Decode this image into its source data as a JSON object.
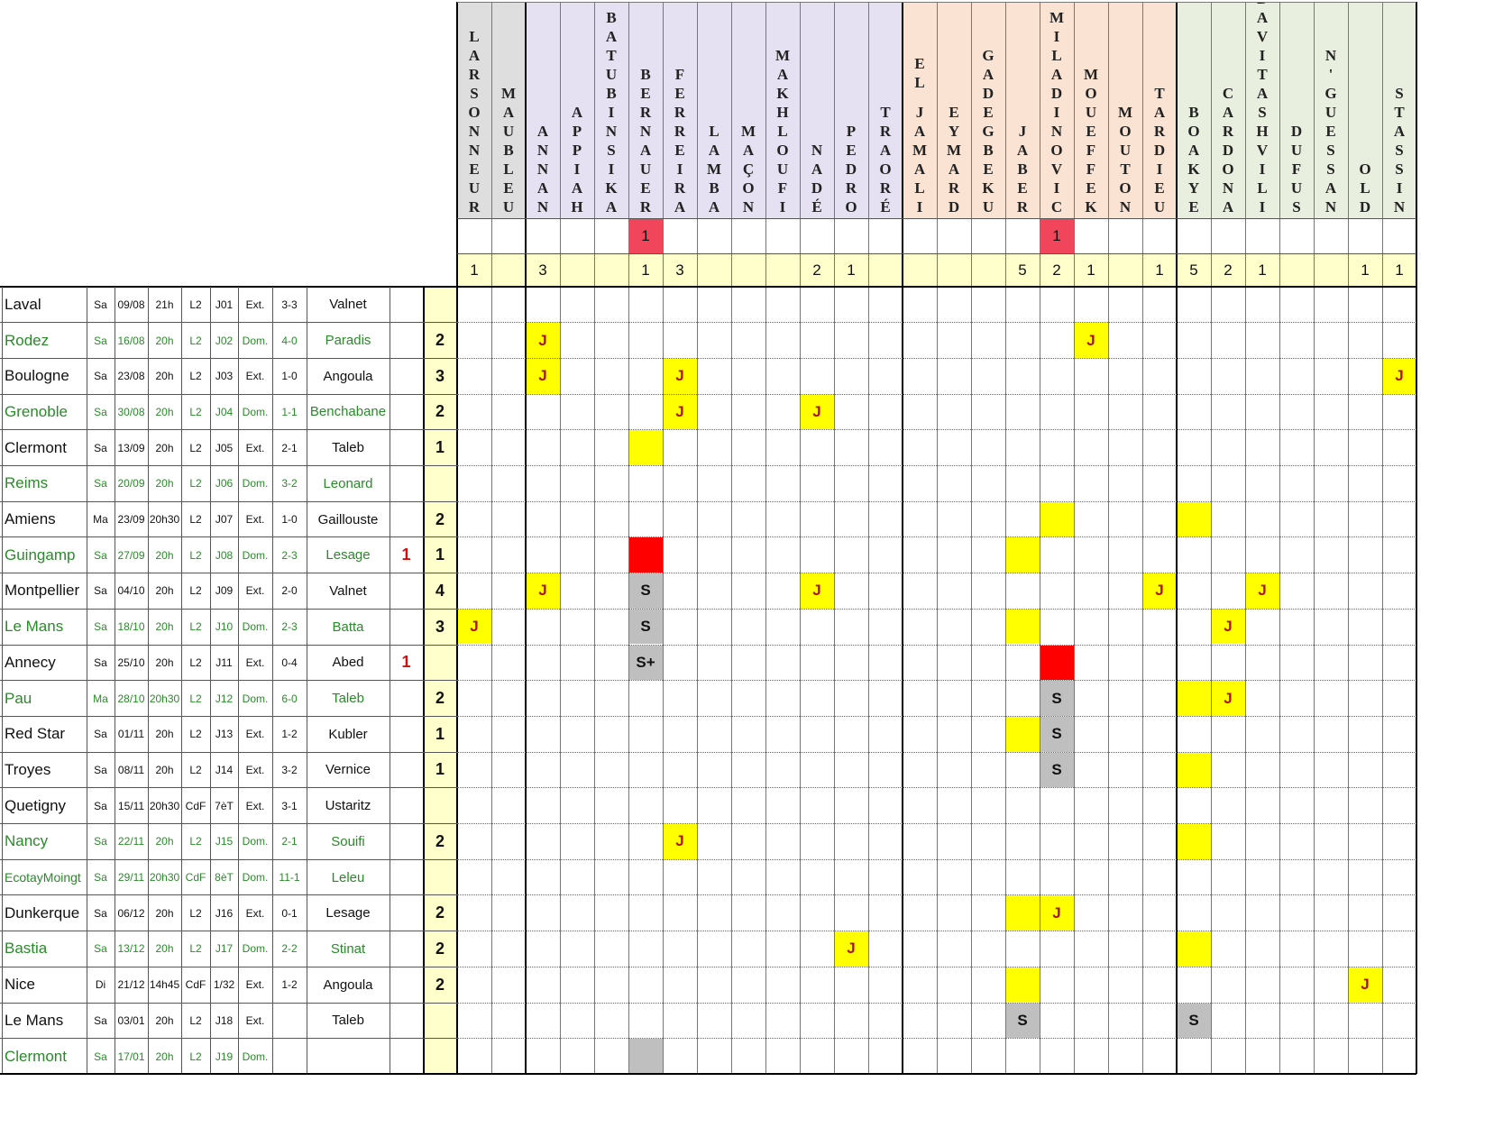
{
  "colors": {
    "header_gk": "#dedede",
    "header_def": "#e5e1f2",
    "header_mid": "#fbe3d4",
    "header_att": "#e9efdf",
    "summary": "#ffffcc",
    "yellow": "#ffff00",
    "red": "#ff0000",
    "red_light": "#f0455a",
    "gray": "#bfbfbf",
    "home_text": "#2a8a2a",
    "red_num": "#d01010"
  },
  "players": [
    {
      "name": "LARSONNEUR",
      "group": "gk",
      "red_count": "",
      "yellow_total": "1"
    },
    {
      "name": "MAUBLEU",
      "group": "gk",
      "red_count": "",
      "yellow_total": ""
    },
    {
      "name": "ANNAN",
      "group": "def",
      "red_count": "",
      "yellow_total": "3"
    },
    {
      "name": "APPIAH",
      "group": "def",
      "red_count": "",
      "yellow_total": ""
    },
    {
      "name": "BATUBINSIKA",
      "group": "def",
      "red_count": "",
      "yellow_total": ""
    },
    {
      "name": "BERNAUER",
      "group": "def",
      "red_count": "1",
      "yellow_total": "1"
    },
    {
      "name": "FERREIRA",
      "group": "def",
      "red_count": "",
      "yellow_total": "3"
    },
    {
      "name": "LAMBA",
      "group": "def",
      "red_count": "",
      "yellow_total": ""
    },
    {
      "name": "MAÇON",
      "group": "def",
      "red_count": "",
      "yellow_total": ""
    },
    {
      "name": "MAKHLOUFI",
      "group": "def",
      "red_count": "",
      "yellow_total": ""
    },
    {
      "name": "NADÉ",
      "group": "def",
      "red_count": "",
      "yellow_total": "2"
    },
    {
      "name": "PEDRO",
      "group": "def",
      "red_count": "",
      "yellow_total": "1"
    },
    {
      "name": "TRAORÉ",
      "group": "def",
      "red_count": "",
      "yellow_total": ""
    },
    {
      "name": "EL JAMALI",
      "group": "mid",
      "red_count": "",
      "yellow_total": ""
    },
    {
      "name": "EYMARD",
      "group": "mid",
      "red_count": "",
      "yellow_total": ""
    },
    {
      "name": "GADEGBEKU",
      "group": "mid",
      "red_count": "",
      "yellow_total": ""
    },
    {
      "name": "JABER",
      "group": "mid",
      "red_count": "",
      "yellow_total": "5"
    },
    {
      "name": "MILADINOVIC",
      "group": "mid",
      "red_count": "1",
      "yellow_total": "2"
    },
    {
      "name": "MOUEFFEK",
      "group": "mid",
      "red_count": "",
      "yellow_total": "1"
    },
    {
      "name": "MOUTON",
      "group": "mid",
      "red_count": "",
      "yellow_total": ""
    },
    {
      "name": "TARDIEU",
      "group": "mid",
      "red_count": "",
      "yellow_total": "1"
    },
    {
      "name": "BOAKYE",
      "group": "att",
      "red_count": "",
      "yellow_total": "5"
    },
    {
      "name": "CARDONA",
      "group": "att",
      "red_count": "",
      "yellow_total": "2"
    },
    {
      "name": "DAVITASHVILI",
      "group": "att",
      "red_count": "",
      "yellow_total": "1"
    },
    {
      "name": "DUFUS",
      "group": "att",
      "red_count": "",
      "yellow_total": ""
    },
    {
      "name": "N'GUESSAN",
      "group": "att",
      "red_count": "",
      "yellow_total": ""
    },
    {
      "name": "OLD",
      "group": "att",
      "red_count": "",
      "yellow_total": "1"
    },
    {
      "name": "STASSIN",
      "group": "att",
      "red_count": "",
      "yellow_total": "1"
    }
  ],
  "matches": [
    {
      "opponent": "Laval",
      "home": false,
      "day": "Sa",
      "date": "09/08",
      "time": "21h",
      "comp": "L2",
      "round": "J01",
      "venue": "Ext.",
      "score": "3-3",
      "referee": "Valnet",
      "reds": "",
      "yellows": "",
      "cells": []
    },
    {
      "opponent": "Rodez",
      "home": true,
      "day": "Sa",
      "date": "16/08",
      "time": "20h",
      "comp": "L2",
      "round": "J02",
      "venue": "Dom.",
      "score": "4-0",
      "referee": "Paradis",
      "reds": "",
      "yellows": "2",
      "cells": [
        [
          2,
          "yellow",
          "J"
        ],
        [
          18,
          "yellow",
          "J"
        ]
      ]
    },
    {
      "opponent": "Boulogne",
      "home": false,
      "day": "Sa",
      "date": "23/08",
      "time": "20h",
      "comp": "L2",
      "round": "J03",
      "venue": "Ext.",
      "score": "1-0",
      "referee": "Angoula",
      "reds": "",
      "yellows": "3",
      "cells": [
        [
          2,
          "yellow",
          "J"
        ],
        [
          6,
          "yellow",
          "J"
        ],
        [
          27,
          "yellow",
          "J"
        ]
      ]
    },
    {
      "opponent": "Grenoble",
      "home": true,
      "day": "Sa",
      "date": "30/08",
      "time": "20h",
      "comp": "L2",
      "round": "J04",
      "venue": "Dom.",
      "score": "1-1",
      "referee": "Benchabane",
      "reds": "",
      "yellows": "2",
      "cells": [
        [
          6,
          "yellow",
          "J"
        ],
        [
          10,
          "yellow",
          "J"
        ]
      ]
    },
    {
      "opponent": "Clermont",
      "home": false,
      "day": "Sa",
      "date": "13/09",
      "time": "20h",
      "comp": "L2",
      "round": "J05",
      "venue": "Ext.",
      "score": "2-1",
      "referee": "Taleb",
      "reds": "",
      "yellows": "1",
      "cells": [
        [
          5,
          "yellow",
          ""
        ]
      ]
    },
    {
      "opponent": "Reims",
      "home": true,
      "day": "Sa",
      "date": "20/09",
      "time": "20h",
      "comp": "L2",
      "round": "J06",
      "venue": "Dom.",
      "score": "3-2",
      "referee": "Leonard",
      "reds": "",
      "yellows": "",
      "cells": []
    },
    {
      "opponent": "Amiens",
      "home": false,
      "day": "Ma",
      "date": "23/09",
      "time": "20h30",
      "comp": "L2",
      "round": "J07",
      "venue": "Ext.",
      "score": "1-0",
      "referee": "Gaillouste",
      "reds": "",
      "yellows": "2",
      "cells": [
        [
          17,
          "yellow",
          ""
        ],
        [
          21,
          "yellow",
          ""
        ]
      ]
    },
    {
      "opponent": "Guingamp",
      "home": true,
      "day": "Sa",
      "date": "27/09",
      "time": "20h",
      "comp": "L2",
      "round": "J08",
      "venue": "Dom.",
      "score": "2-3",
      "referee": "Lesage",
      "reds": "1",
      "yellows": "1",
      "cells": [
        [
          5,
          "red",
          ""
        ],
        [
          16,
          "yellow",
          ""
        ]
      ]
    },
    {
      "opponent": "Montpellier",
      "home": false,
      "day": "Sa",
      "date": "04/10",
      "time": "20h",
      "comp": "L2",
      "round": "J09",
      "venue": "Ext.",
      "score": "2-0",
      "referee": "Valnet",
      "reds": "",
      "yellows": "4",
      "cells": [
        [
          2,
          "yellow",
          "J"
        ],
        [
          5,
          "gray",
          "S"
        ],
        [
          10,
          "yellow",
          "J"
        ],
        [
          20,
          "yellow",
          "J"
        ],
        [
          23,
          "yellow",
          "J"
        ]
      ]
    },
    {
      "opponent": "Le Mans",
      "home": true,
      "day": "Sa",
      "date": "18/10",
      "time": "20h",
      "comp": "L2",
      "round": "J10",
      "venue": "Dom.",
      "score": "2-3",
      "referee": "Batta",
      "reds": "",
      "yellows": "3",
      "cells": [
        [
          0,
          "yellow",
          "J"
        ],
        [
          5,
          "gray",
          "S"
        ],
        [
          16,
          "yellow",
          ""
        ],
        [
          22,
          "yellow",
          "J"
        ]
      ]
    },
    {
      "opponent": "Annecy",
      "home": false,
      "day": "Sa",
      "date": "25/10",
      "time": "20h",
      "comp": "L2",
      "round": "J11",
      "venue": "Ext.",
      "score": "0-4",
      "referee": "Abed",
      "reds": "1",
      "yellows": "",
      "cells": [
        [
          5,
          "gray",
          "S+"
        ],
        [
          17,
          "red",
          ""
        ]
      ]
    },
    {
      "opponent": "Pau",
      "home": true,
      "day": "Ma",
      "date": "28/10",
      "time": "20h30",
      "comp": "L2",
      "round": "J12",
      "venue": "Dom.",
      "score": "6-0",
      "referee": "Taleb",
      "reds": "",
      "yellows": "2",
      "cells": [
        [
          17,
          "gray",
          "S"
        ],
        [
          21,
          "yellow",
          ""
        ],
        [
          22,
          "yellow",
          "J"
        ]
      ]
    },
    {
      "opponent": "Red Star",
      "home": false,
      "day": "Sa",
      "date": "01/11",
      "time": "20h",
      "comp": "L2",
      "round": "J13",
      "venue": "Ext.",
      "score": "1-2",
      "referee": "Kubler",
      "reds": "",
      "yellows": "1",
      "cells": [
        [
          16,
          "yellow",
          ""
        ],
        [
          17,
          "gray",
          "S"
        ]
      ]
    },
    {
      "opponent": "Troyes",
      "home": false,
      "day": "Sa",
      "date": "08/11",
      "time": "20h",
      "comp": "L2",
      "round": "J14",
      "venue": "Ext.",
      "score": "3-2",
      "referee": "Vernice",
      "reds": "",
      "yellows": "1",
      "cells": [
        [
          17,
          "gray",
          "S"
        ],
        [
          21,
          "yellow",
          ""
        ]
      ]
    },
    {
      "opponent": "Quetigny",
      "home": false,
      "day": "Sa",
      "date": "15/11",
      "time": "20h30",
      "comp": "CdF",
      "round": "7èT",
      "venue": "Ext.",
      "score": "3-1",
      "referee": "Ustaritz",
      "reds": "",
      "yellows": "",
      "cells": []
    },
    {
      "opponent": "Nancy",
      "home": true,
      "day": "Sa",
      "date": "22/11",
      "time": "20h",
      "comp": "L2",
      "round": "J15",
      "venue": "Dom.",
      "score": "2-1",
      "referee": "Souifi",
      "reds": "",
      "yellows": "2",
      "cells": [
        [
          6,
          "yellow",
          "J"
        ],
        [
          21,
          "yellow",
          ""
        ]
      ]
    },
    {
      "opponent": "EcotayMoingt",
      "home": true,
      "day": "Sa",
      "date": "29/11",
      "time": "20h30",
      "comp": "CdF",
      "round": "8èT",
      "venue": "Dom.",
      "score": "11-1",
      "referee": "Leleu",
      "reds": "",
      "yellows": "",
      "cells": []
    },
    {
      "opponent": "Dunkerque",
      "home": false,
      "day": "Sa",
      "date": "06/12",
      "time": "20h",
      "comp": "L2",
      "round": "J16",
      "venue": "Ext.",
      "score": "0-1",
      "referee": "Lesage",
      "reds": "",
      "yellows": "2",
      "cells": [
        [
          16,
          "yellow",
          ""
        ],
        [
          17,
          "yellow",
          "J"
        ]
      ]
    },
    {
      "opponent": "Bastia",
      "home": true,
      "day": "Sa",
      "date": "13/12",
      "time": "20h",
      "comp": "L2",
      "round": "J17",
      "venue": "Dom.",
      "score": "2-2",
      "referee": "Stinat",
      "reds": "",
      "yellows": "2",
      "cells": [
        [
          11,
          "yellow",
          "J"
        ],
        [
          21,
          "yellow",
          ""
        ]
      ]
    },
    {
      "opponent": "Nice",
      "home": false,
      "day": "Di",
      "date": "21/12",
      "time": "14h45",
      "comp": "CdF",
      "round": "1/32",
      "venue": "Ext.",
      "score": "1-2",
      "referee": "Angoula",
      "reds": "",
      "yellows": "2",
      "cells": [
        [
          16,
          "yellow",
          ""
        ],
        [
          26,
          "yellow",
          "J"
        ]
      ]
    },
    {
      "opponent": "Le Mans",
      "home": false,
      "day": "Sa",
      "date": "03/01",
      "time": "20h",
      "comp": "L2",
      "round": "J18",
      "venue": "Ext.",
      "score": "",
      "referee": "Taleb",
      "reds": "",
      "yellows": "",
      "cells": [
        [
          16,
          "gray",
          "S"
        ],
        [
          21,
          "gray",
          "S"
        ]
      ]
    },
    {
      "opponent": "Clermont",
      "home": true,
      "day": "Sa",
      "date": "17/01",
      "time": "20h",
      "comp": "L2",
      "round": "J19",
      "venue": "Dom.",
      "score": "",
      "referee": "",
      "reds": "",
      "yellows": "",
      "cells": [
        [
          5,
          "gray",
          ""
        ]
      ]
    }
  ]
}
